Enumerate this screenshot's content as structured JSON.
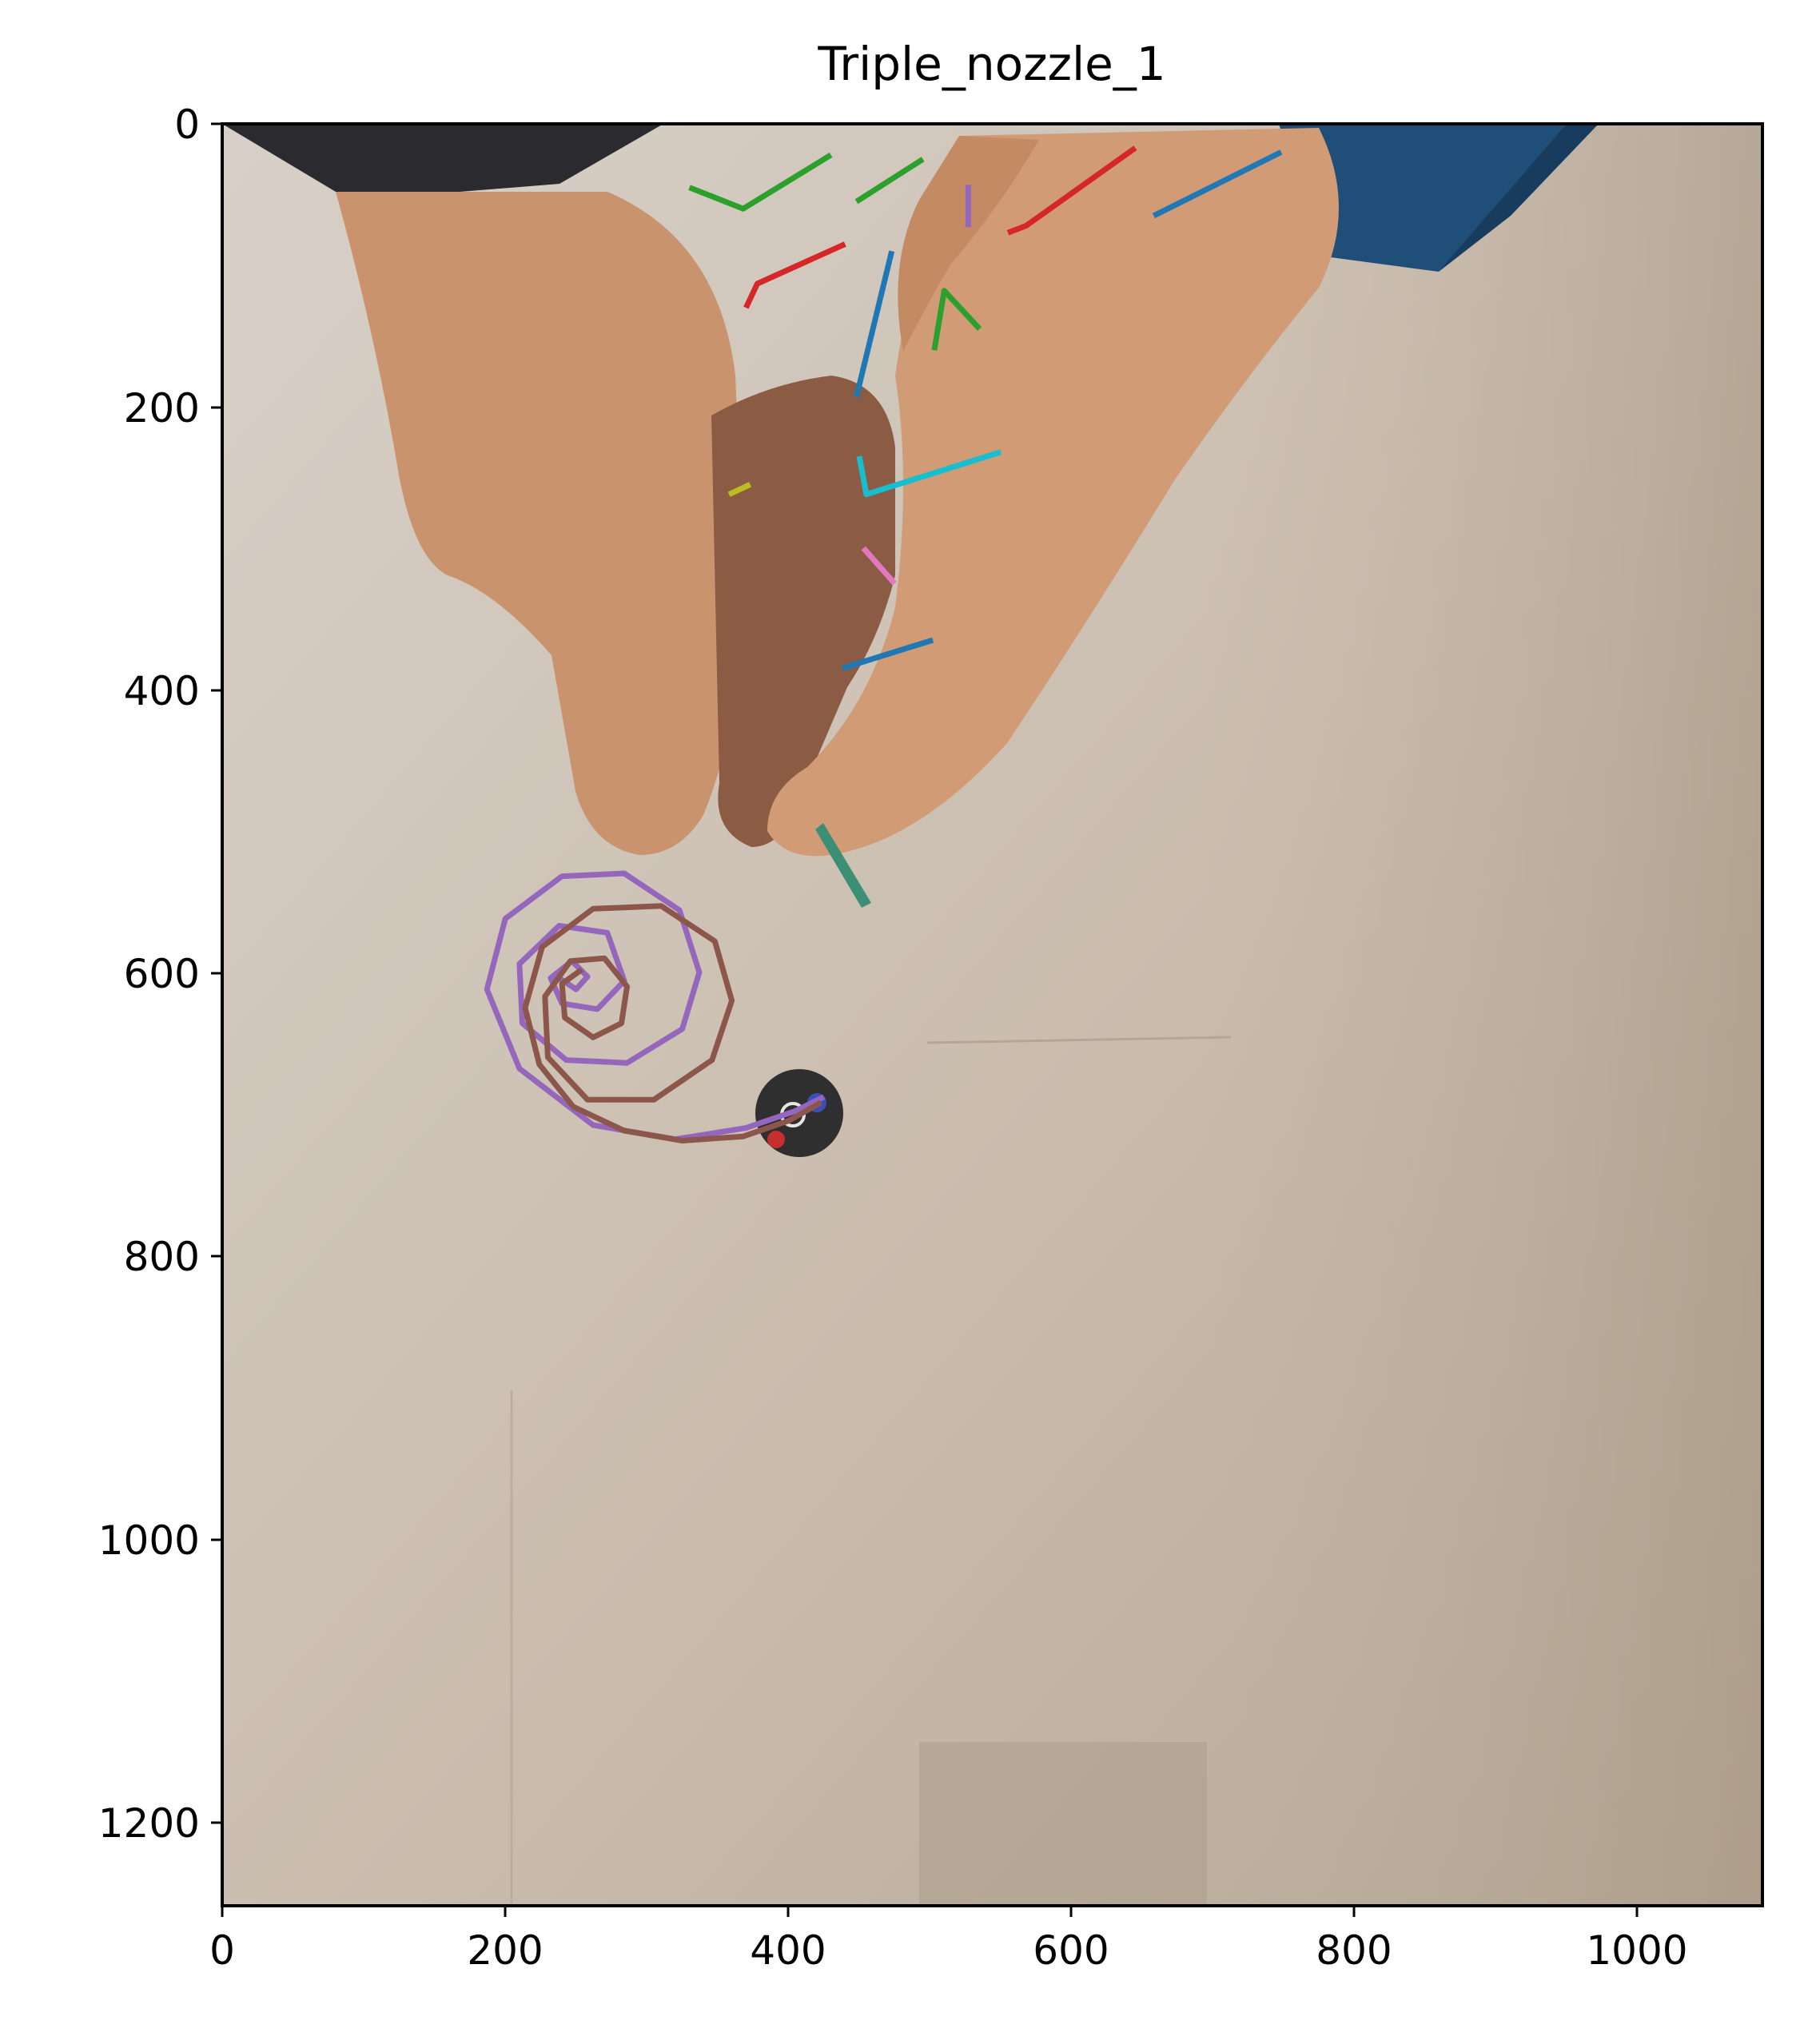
{
  "chart_data": {
    "type": "image-with-trajectories",
    "title": "Triple_nozzle_1",
    "xlabel": "",
    "ylabel": "",
    "xlim": [
      0,
      1088
    ],
    "ylim": [
      1260,
      0
    ],
    "x_ticks": [
      0,
      200,
      400,
      600,
      800,
      1000
    ],
    "y_ticks": [
      0,
      200,
      400,
      600,
      800,
      1000,
      1200
    ],
    "grid": false,
    "legend": "none",
    "background_colors": {
      "page": "#c7bbae",
      "wall": "#d3cbc2",
      "floor_shade": "#b7a997"
    },
    "hand_color": "#c9946d",
    "sleeve_left": "#2b2a2e",
    "sleeve_right": "#1f4e79",
    "nozzle_color": "#2f2f30",
    "series": [
      {
        "color": "#2ca02c",
        "points": [
          [
            330,
            45
          ],
          [
            368,
            60
          ],
          [
            430,
            22
          ]
        ]
      },
      {
        "color": "#2ca02c",
        "points": [
          [
            448,
            55
          ],
          [
            495,
            25
          ]
        ]
      },
      {
        "color": "#9467bd",
        "points": [
          [
            527,
            43
          ],
          [
            527,
            73
          ]
        ]
      },
      {
        "color": "#d62728",
        "points": [
          [
            555,
            77
          ],
          [
            568,
            72
          ],
          [
            645,
            17
          ]
        ]
      },
      {
        "color": "#1f77b4",
        "points": [
          [
            658,
            65
          ],
          [
            748,
            20
          ]
        ]
      },
      {
        "color": "#d62728",
        "points": [
          [
            370,
            130
          ],
          [
            378,
            113
          ],
          [
            440,
            85
          ]
        ]
      },
      {
        "color": "#1f77b4",
        "points": [
          [
            448,
            193
          ],
          [
            473,
            90
          ]
        ]
      },
      {
        "color": "#2ca02c",
        "points": [
          [
            503,
            160
          ],
          [
            510,
            118
          ],
          [
            535,
            145
          ]
        ]
      },
      {
        "color": "#bcbd22",
        "points": [
          [
            358,
            262
          ],
          [
            373,
            255
          ]
        ]
      },
      {
        "color": "#17becf",
        "points": [
          [
            450,
            235
          ],
          [
            455,
            262
          ],
          [
            550,
            232
          ]
        ]
      },
      {
        "color": "#e377c2",
        "points": [
          [
            453,
            300
          ],
          [
            475,
            325
          ]
        ]
      },
      {
        "color": "#1f77b4",
        "points": [
          [
            438,
            385
          ],
          [
            502,
            365
          ]
        ]
      },
      {
        "color": "#9467bd",
        "points": [
          [
            425,
            688
          ],
          [
            405,
            698
          ],
          [
            370,
            710
          ],
          [
            320,
            718
          ],
          [
            262,
            708
          ],
          [
            210,
            668
          ],
          [
            187,
            612
          ],
          [
            200,
            562
          ],
          [
            240,
            532
          ],
          [
            284,
            530
          ],
          [
            323,
            556
          ],
          [
            337,
            600
          ],
          [
            325,
            640
          ],
          [
            286,
            664
          ],
          [
            243,
            662
          ],
          [
            212,
            636
          ],
          [
            210,
            594
          ],
          [
            238,
            567
          ],
          [
            272,
            572
          ],
          [
            284,
            606
          ],
          [
            265,
            626
          ],
          [
            240,
            622
          ],
          [
            232,
            604
          ],
          [
            247,
            592
          ],
          [
            258,
            603
          ],
          [
            250,
            612
          ],
          [
            238,
            604
          ]
        ]
      },
      {
        "color": "#8c564b",
        "points": [
          [
            423,
            692
          ],
          [
            400,
            705
          ],
          [
            368,
            716
          ],
          [
            325,
            719
          ],
          [
            284,
            712
          ],
          [
            248,
            695
          ],
          [
            224,
            665
          ],
          [
            214,
            625
          ],
          [
            226,
            582
          ],
          [
            262,
            555
          ],
          [
            310,
            553
          ],
          [
            348,
            578
          ],
          [
            360,
            620
          ],
          [
            346,
            662
          ],
          [
            305,
            690
          ],
          [
            258,
            690
          ],
          [
            230,
            660
          ],
          [
            228,
            617
          ],
          [
            246,
            592
          ],
          [
            270,
            590
          ],
          [
            286,
            610
          ],
          [
            282,
            636
          ],
          [
            262,
            646
          ],
          [
            242,
            632
          ],
          [
            240,
            608
          ],
          [
            254,
            598
          ]
        ]
      }
    ]
  }
}
